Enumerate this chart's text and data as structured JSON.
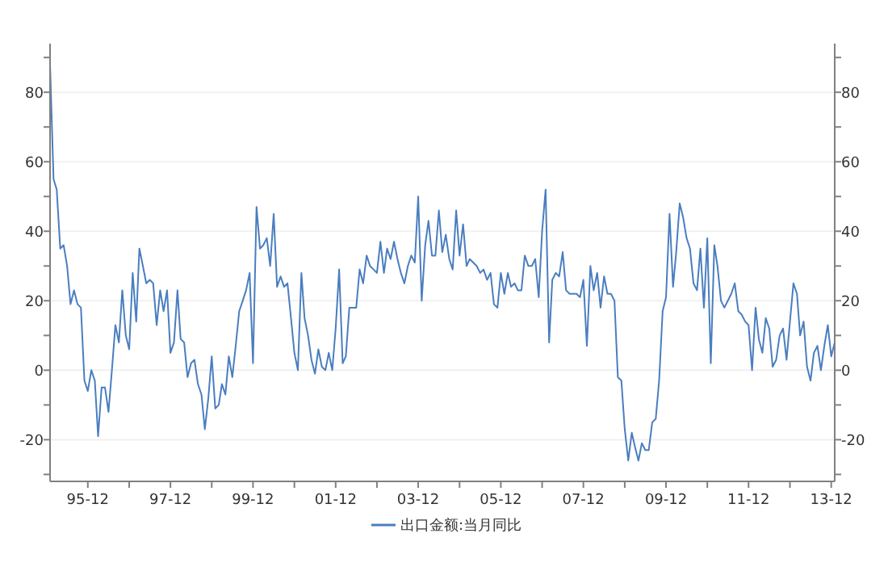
{
  "chart_data": {
    "type": "line",
    "x": [
      "1995-01",
      "1995-02",
      "1995-03",
      "1995-04",
      "1995-05",
      "1995-06",
      "1995-07",
      "1995-08",
      "1995-09",
      "1995-10",
      "1995-11",
      "1995-12",
      "1996-01",
      "1996-02",
      "1996-03",
      "1996-04",
      "1996-05",
      "1996-06",
      "1996-07",
      "1996-08",
      "1996-09",
      "1996-10",
      "1996-11",
      "1996-12",
      "1997-01",
      "1997-02",
      "1997-03",
      "1997-04",
      "1997-05",
      "1997-06",
      "1997-07",
      "1997-08",
      "1997-09",
      "1997-10",
      "1997-11",
      "1997-12",
      "1998-01",
      "1998-02",
      "1998-03",
      "1998-04",
      "1998-05",
      "1998-06",
      "1998-07",
      "1998-08",
      "1998-09",
      "1998-10",
      "1998-11",
      "1998-12",
      "1999-01",
      "1999-02",
      "1999-03",
      "1999-04",
      "1999-05",
      "1999-06",
      "1999-07",
      "1999-08",
      "1999-09",
      "1999-10",
      "1999-11",
      "1999-12",
      "2000-01",
      "2000-02",
      "2000-03",
      "2000-04",
      "2000-05",
      "2000-06",
      "2000-07",
      "2000-08",
      "2000-09",
      "2000-10",
      "2000-11",
      "2000-12",
      "2001-01",
      "2001-02",
      "2001-03",
      "2001-04",
      "2001-05",
      "2001-06",
      "2001-07",
      "2001-08",
      "2001-09",
      "2001-10",
      "2001-11",
      "2001-12",
      "2002-01",
      "2002-02",
      "2002-03",
      "2002-04",
      "2002-05",
      "2002-06",
      "2002-07",
      "2002-08",
      "2002-09",
      "2002-10",
      "2002-11",
      "2002-12",
      "2003-01",
      "2003-02",
      "2003-03",
      "2003-04",
      "2003-05",
      "2003-06",
      "2003-07",
      "2003-08",
      "2003-09",
      "2003-10",
      "2003-11",
      "2003-12",
      "2004-01",
      "2004-02",
      "2004-03",
      "2004-04",
      "2004-05",
      "2004-06",
      "2004-07",
      "2004-08",
      "2004-09",
      "2004-10",
      "2004-11",
      "2004-12",
      "2005-01",
      "2005-02",
      "2005-03",
      "2005-04",
      "2005-05",
      "2005-06",
      "2005-07",
      "2005-08",
      "2005-09",
      "2005-10",
      "2005-11",
      "2005-12",
      "2006-01",
      "2006-02",
      "2006-03",
      "2006-04",
      "2006-05",
      "2006-06",
      "2006-07",
      "2006-08",
      "2006-09",
      "2006-10",
      "2006-11",
      "2006-12",
      "2007-01",
      "2007-02",
      "2007-03",
      "2007-04",
      "2007-05",
      "2007-06",
      "2007-07",
      "2007-08",
      "2007-09",
      "2007-10",
      "2007-11",
      "2007-12",
      "2008-01",
      "2008-02",
      "2008-03",
      "2008-04",
      "2008-05",
      "2008-06",
      "2008-07",
      "2008-08",
      "2008-09",
      "2008-10",
      "2008-11",
      "2008-12",
      "2009-01",
      "2009-02",
      "2009-03",
      "2009-04",
      "2009-05",
      "2009-06",
      "2009-07",
      "2009-08",
      "2009-09",
      "2009-10",
      "2009-11",
      "2009-12",
      "2010-01",
      "2010-02",
      "2010-03",
      "2010-04",
      "2010-05",
      "2010-06",
      "2010-07",
      "2010-08",
      "2010-09",
      "2010-10",
      "2010-11",
      "2010-12",
      "2011-01",
      "2011-02",
      "2011-03",
      "2011-04",
      "2011-05",
      "2011-06",
      "2011-07",
      "2011-08",
      "2011-09",
      "2011-10",
      "2011-11",
      "2011-12",
      "2012-01",
      "2012-02",
      "2012-03",
      "2012-04",
      "2012-05",
      "2012-06",
      "2012-07",
      "2012-08",
      "2012-09",
      "2012-10",
      "2012-11",
      "2012-12",
      "2013-01",
      "2013-02",
      "2013-03",
      "2013-04",
      "2013-05",
      "2013-06",
      "2013-07",
      "2013-08",
      "2013-09",
      "2013-10",
      "2013-11",
      "2013-12",
      "2014-01"
    ],
    "series": [
      {
        "name": "出口金额:当月同比",
        "color": "#4a7ebf",
        "values": [
          88,
          55,
          52,
          35,
          36,
          30,
          19,
          23,
          19,
          18,
          -3,
          -6,
          0,
          -3,
          -19,
          -5,
          -5,
          -12,
          0,
          13,
          8,
          23,
          10,
          6,
          28,
          14,
          35,
          30,
          25,
          26,
          25,
          13,
          23,
          17,
          23,
          5,
          8,
          23,
          9,
          8,
          -2,
          2,
          3,
          -4,
          -7,
          -17,
          -8,
          4,
          -11,
          -10,
          -4,
          -7,
          4,
          -2,
          7,
          17,
          20,
          23,
          28,
          2,
          47,
          35,
          36,
          38,
          30,
          45,
          24,
          27,
          24,
          25,
          15,
          5,
          0,
          28,
          15,
          10,
          3,
          -1,
          6,
          1,
          0,
          5,
          0,
          12,
          29,
          2,
          4,
          18,
          18,
          18,
          29,
          25,
          33,
          30,
          29,
          28,
          37,
          28,
          35,
          32,
          37,
          32,
          28,
          25,
          30,
          33,
          31,
          50,
          20,
          36,
          43,
          33,
          33,
          46,
          34,
          39,
          32,
          29,
          46,
          33,
          42,
          30,
          32,
          31,
          30,
          28,
          29,
          26,
          28,
          19,
          18,
          28,
          22,
          28,
          24,
          25,
          23,
          23,
          33,
          30,
          30,
          32,
          21,
          40,
          52,
          8,
          26,
          28,
          27,
          34,
          23,
          22,
          22,
          22,
          21,
          26,
          7,
          30,
          23,
          28,
          18,
          27,
          22,
          22,
          20,
          -2,
          -3,
          -17,
          -26,
          -18,
          -22,
          -26,
          -21,
          -23,
          -23,
          -15,
          -14,
          -3,
          17,
          21,
          45,
          24,
          34,
          48,
          44,
          38,
          35,
          25,
          23,
          35,
          18,
          38,
          2,
          36,
          30,
          20,
          18,
          20,
          22,
          25,
          17,
          16,
          14,
          13,
          0,
          18,
          9,
          5,
          15,
          12,
          1,
          3,
          10,
          12,
          3,
          14,
          25,
          22,
          10,
          14,
          1,
          -3,
          5,
          7,
          0,
          7,
          13,
          4,
          8
        ]
      }
    ],
    "xlim": [
      "1995-01",
      "2014-01"
    ],
    "xticks": [
      {
        "value": "1995-12",
        "label": "95-12"
      },
      {
        "value": "1996-12",
        "label": null
      },
      {
        "value": "1997-12",
        "label": "97-12"
      },
      {
        "value": "1998-12",
        "label": null
      },
      {
        "value": "1999-12",
        "label": "99-12"
      },
      {
        "value": "2000-12",
        "label": null
      },
      {
        "value": "2001-12",
        "label": "01-12"
      },
      {
        "value": "2002-12",
        "label": null
      },
      {
        "value": "2003-12",
        "label": "03-12"
      },
      {
        "value": "2004-12",
        "label": null
      },
      {
        "value": "2005-12",
        "label": "05-12"
      },
      {
        "value": "2006-12",
        "label": null
      },
      {
        "value": "2007-12",
        "label": "07-12"
      },
      {
        "value": "2008-12",
        "label": null
      },
      {
        "value": "2009-12",
        "label": "09-12"
      },
      {
        "value": "2010-12",
        "label": null
      },
      {
        "value": "2011-12",
        "label": "11-12"
      },
      {
        "value": "2012-12",
        "label": null
      },
      {
        "value": "2013-12",
        "label": "13-12"
      }
    ],
    "ylim": [
      -32,
      94
    ],
    "yticks": [
      {
        "value": -30,
        "label": null
      },
      -20,
      {
        "value": -10,
        "label": null
      },
      0,
      {
        "value": 10,
        "label": null
      },
      20,
      {
        "value": 30,
        "label": null
      },
      40,
      {
        "value": 50,
        "label": null
      },
      60,
      {
        "value": 70,
        "label": null
      },
      80,
      {
        "value": 90,
        "label": null
      }
    ],
    "y2lim": [
      -32,
      94
    ],
    "y2ticks": [
      {
        "value": -30,
        "label": null
      },
      -20,
      {
        "value": -10,
        "label": null
      },
      0,
      {
        "value": 10,
        "label": null
      },
      20,
      {
        "value": 30,
        "label": null
      },
      40,
      {
        "value": 50,
        "label": null
      },
      60,
      {
        "value": 70,
        "label": null
      },
      80,
      {
        "value": 90,
        "label": null
      }
    ],
    "grid": "y",
    "legend": "bottom",
    "line_style": "solid",
    "marker": "none"
  }
}
